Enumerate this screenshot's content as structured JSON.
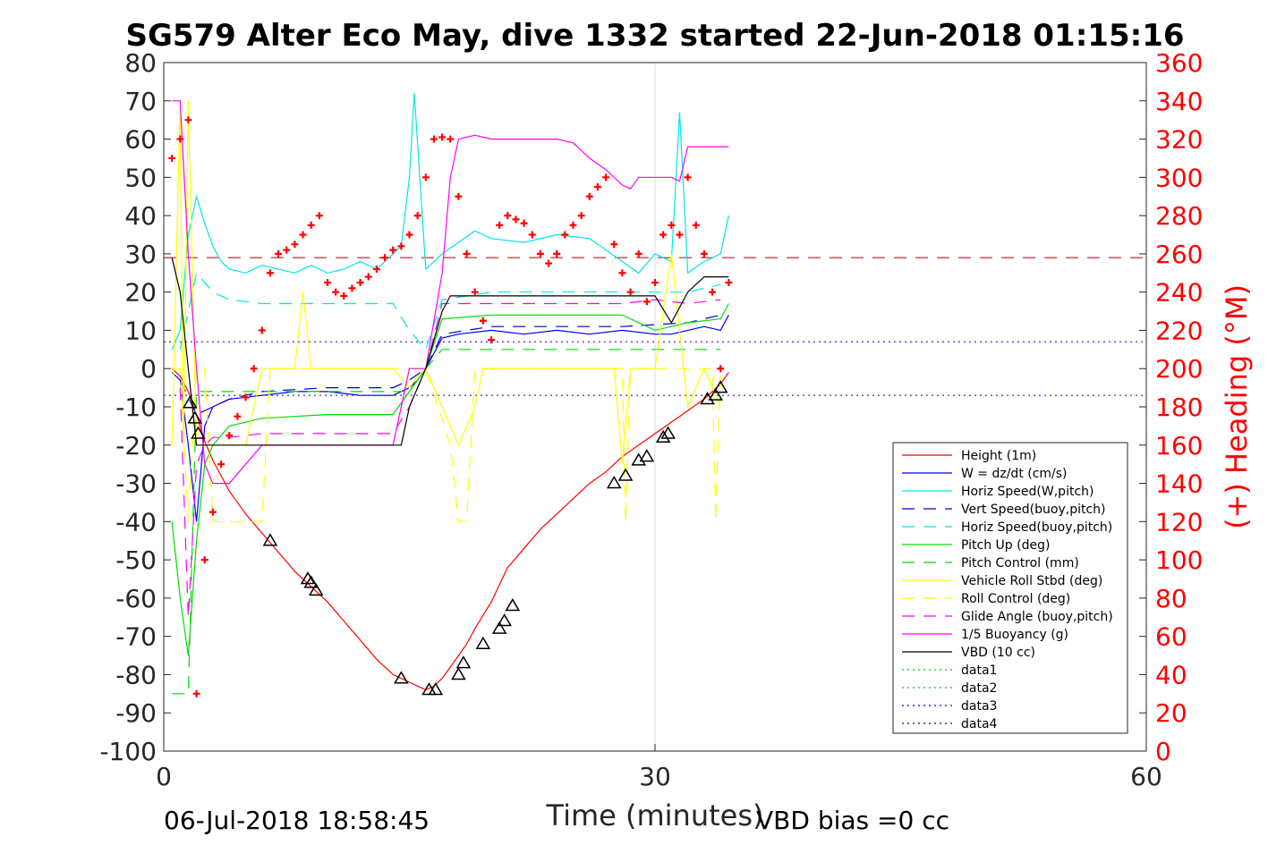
{
  "title": "SG579 Alter Eco May, dive 1332 started 22-Jun-2018 01:15:16",
  "footer": {
    "timestamp": "06-Jul-2018 18:58:45",
    "vbd_bias": "VBD bias =0 cc"
  },
  "chart_data": {
    "type": "line",
    "title": "SG579 Alter Eco May, dive 1332 started 22-Jun-2018 01:15:16",
    "xlabel": "Time (minutes)",
    "ylabel": "",
    "y2label": "(+) Heading (°M)",
    "xlim": [
      0,
      60
    ],
    "ylim": [
      -100,
      80
    ],
    "y2lim": [
      0,
      360
    ],
    "x_ticks": [
      "0",
      "30",
      "60"
    ],
    "y_ticks": [
      "80",
      "70",
      "60",
      "50",
      "40",
      "30",
      "20",
      "10",
      "0",
      "-10",
      "-20",
      "-30",
      "-40",
      "-50",
      "-60",
      "-70",
      "-80",
      "-90",
      "-100"
    ],
    "y2_ticks": [
      "360",
      "340",
      "320",
      "300",
      "280",
      "260",
      "240",
      "220",
      "200",
      "180",
      "160",
      "140",
      "120",
      "100",
      "80",
      "60",
      "40",
      "20",
      "0"
    ],
    "grid": "x-at-30",
    "legend_position": "lower-right",
    "colors": {
      "axes": "#262626",
      "heading_axis": "#ff0000"
    },
    "series": [
      {
        "name": "Height (1m)",
        "color": "#ff0000",
        "dash": "solid",
        "x": [
          0.5,
          1.0,
          1.5,
          2.0,
          2.5,
          3.0,
          4.0,
          5.0,
          6.0,
          7.0,
          8.0,
          9.0,
          10.0,
          11.0,
          12.0,
          13.0,
          14.0,
          15.0,
          16.0,
          16.5,
          17.0,
          17.5,
          18.0,
          18.5,
          19.0,
          20.0,
          21.0,
          22.0,
          23.0,
          24.0,
          25.0,
          26.0,
          27.0,
          28.0,
          29.0,
          30.0,
          31.0,
          32.0,
          33.0,
          34.0,
          34.5
        ],
        "y": [
          0,
          -2,
          -6,
          -12,
          -19,
          -24,
          -32,
          -38,
          -43,
          -48,
          -53,
          -57,
          -61,
          -66,
          -71,
          -76,
          -80,
          -82,
          -84,
          -83,
          -81,
          -78,
          -75,
          -72,
          -68,
          -61,
          -52,
          -47,
          -42,
          -38,
          -34,
          -30,
          -27,
          -23,
          -20,
          -17,
          -14,
          -11,
          -8,
          -4,
          -1
        ]
      },
      {
        "name": "W = dz/dt (cm/s)",
        "color": "#0000ff",
        "dash": "solid",
        "x": [
          0.5,
          1.0,
          1.5,
          2.0,
          2.5,
          3.0,
          4.0,
          6.0,
          8.0,
          10.0,
          12.0,
          14.0,
          15.0,
          15.5,
          16.0,
          17.0,
          18.0,
          20.0,
          22.0,
          24.0,
          26.0,
          28.0,
          30.0,
          31.0,
          32.0,
          33.0,
          34.0,
          34.5
        ],
        "y": [
          -1,
          -3,
          -20,
          -40,
          -15,
          -10,
          -8,
          -7,
          -6,
          -6,
          -7,
          -7,
          -5,
          -3,
          0,
          8,
          9,
          10,
          9,
          10,
          9,
          10,
          9,
          9,
          10,
          11,
          10,
          14
        ]
      },
      {
        "name": "Horiz Speed(W,pitch)",
        "color": "#00e6e6",
        "dash": "solid",
        "x": [
          0.5,
          1.0,
          1.5,
          2.0,
          2.5,
          3.0,
          3.5,
          4.0,
          5.0,
          6.0,
          7.0,
          8.0,
          9.0,
          10.0,
          11.0,
          12.0,
          13.0,
          14.0,
          14.5,
          15.0,
          15.3,
          16.0,
          17.0,
          18.0,
          19.0,
          20.0,
          22.0,
          24.0,
          26.0,
          28.0,
          29.0,
          30.0,
          31.0,
          31.5,
          32.0,
          33.0,
          34.0,
          34.5
        ],
        "y": [
          5,
          10,
          35,
          45,
          38,
          32,
          28,
          26,
          25,
          27,
          26,
          25,
          27,
          25,
          26,
          28,
          26,
          30,
          32,
          50,
          72,
          26,
          30,
          33,
          36,
          34,
          33,
          35,
          34,
          28,
          25,
          30,
          28,
          67,
          25,
          28,
          30,
          40
        ]
      },
      {
        "name": "Vert Speed(buoy,pitch)",
        "color": "#0000cc",
        "dash": "long",
        "x": [
          1.0,
          2.0,
          3.0,
          4.0,
          6.0,
          10.0,
          14.0,
          15.0,
          16.0,
          17.0,
          20.0,
          24.0,
          28.0,
          32.0,
          34.0
        ],
        "y": [
          -3,
          -12,
          -10,
          -8,
          -6,
          -5,
          -5,
          -3,
          0,
          9,
          11,
          11,
          11,
          12,
          14
        ]
      },
      {
        "name": "Horiz Speed(buoy,pitch)",
        "color": "#00e6e6",
        "dash": "long",
        "x": [
          1.0,
          1.5,
          2.0,
          3.0,
          4.0,
          6.0,
          10.0,
          14.0,
          15.0,
          16.0,
          17.0,
          20.0,
          24.0,
          28.0,
          32.0,
          34.0
        ],
        "y": [
          5,
          15,
          25,
          20,
          18,
          17,
          17,
          17,
          10,
          5,
          18,
          20,
          20,
          20,
          20,
          22
        ]
      },
      {
        "name": "Pitch Up (deg)",
        "color": "#00dd00",
        "dash": "solid",
        "x": [
          0.5,
          1.0,
          1.5,
          2.0,
          2.5,
          3.0,
          4.0,
          6.0,
          10.0,
          14.0,
          15.0,
          16.0,
          17.0,
          20.0,
          24.0,
          28.0,
          30.0,
          32.0,
          34.0,
          34.5
        ],
        "y": [
          -40,
          -60,
          -75,
          -45,
          -25,
          -20,
          -15,
          -13,
          -12,
          -12,
          -6,
          0,
          13,
          14,
          14,
          14,
          10,
          12,
          13,
          17
        ]
      },
      {
        "name": "Pitch Control (mm)",
        "color": "#00dd00",
        "dash": "long",
        "x": [
          0.5,
          1.5,
          2.0,
          3.0,
          6.0,
          10.0,
          15.0,
          16.0,
          17.0,
          20.0,
          25.0,
          30.0,
          34.0
        ],
        "y": [
          -85,
          -85,
          -6,
          -6,
          -6,
          -6,
          -6,
          0,
          5,
          5,
          5,
          5,
          5
        ]
      },
      {
        "name": "Vehicle Roll Stbd (deg)",
        "color": "#ffff00",
        "dash": "solid",
        "x": [
          0.5,
          1.0,
          1.2,
          1.5,
          2.0,
          2.5,
          3.0,
          4.0,
          5.0,
          6.0,
          8.0,
          8.5,
          9.0,
          9.5,
          10.0,
          12.0,
          14.0,
          15.0,
          15.5,
          16.0,
          17.0,
          18.0,
          19.0,
          19.5,
          20.0,
          22.0,
          24.0,
          27.5,
          28.0,
          28.5,
          29.0,
          30.0,
          31.0,
          32.0,
          33.0,
          34.0
        ],
        "y": [
          -20,
          70,
          -20,
          70,
          -20,
          -20,
          -20,
          -20,
          -20,
          0,
          0,
          20,
          0,
          0,
          0,
          0,
          0,
          -5,
          -2,
          0,
          -10,
          -20,
          -10,
          0,
          0,
          0,
          0,
          0,
          -25,
          0,
          0,
          0,
          30,
          -10,
          0,
          -10
        ]
      },
      {
        "name": "Roll Control (deg)",
        "color": "#ffff00",
        "dash": "long",
        "x": [
          0.5,
          1.0,
          1.5,
          2.0,
          2.5,
          3.0,
          4.0,
          6.0,
          6.5,
          7.0,
          10.0,
          14.0,
          15.0,
          16.0,
          17.5,
          18.0,
          18.5,
          19.0,
          25.0,
          28.0,
          28.2,
          28.5,
          33.5,
          33.7,
          34.0
        ],
        "y": [
          0,
          0,
          -40,
          0,
          0,
          -40,
          -40,
          -40,
          0,
          0,
          0,
          0,
          0,
          0,
          -20,
          -40,
          -40,
          0,
          0,
          0,
          -40,
          0,
          0,
          -40,
          0
        ]
      },
      {
        "name": "Glide Angle (buoy,pitch)",
        "color": "#ff00ff",
        "dash": "long",
        "x": [
          1.0,
          1.5,
          2.0,
          2.5,
          3.0,
          4.0,
          6.0,
          10.0,
          14.0,
          15.0,
          16.0,
          17.0,
          20.0,
          24.0,
          28.0,
          30.0,
          32.0,
          34.0
        ],
        "y": [
          -5,
          -65,
          -25,
          -20,
          -18,
          -18,
          -17,
          -17,
          -17,
          -10,
          0,
          17,
          17,
          17,
          17,
          18,
          17,
          18
        ]
      },
      {
        "name": "1/5 Buoyancy (g)",
        "color": "#ff00ff",
        "dash": "solid",
        "x": [
          0.5,
          1.0,
          1.5,
          2.0,
          2.5,
          3.0,
          4.0,
          5.0,
          6.0,
          10.0,
          14.0,
          15.0,
          16.0,
          17.0,
          17.5,
          18.0,
          19.0,
          20.0,
          22.0,
          24.0,
          25.0,
          26.0,
          27.0,
          28.0,
          28.5,
          29.0,
          30.0,
          31.0,
          31.5,
          32.0,
          33.0,
          34.0,
          34.5
        ],
        "y": [
          70,
          70,
          30,
          0,
          -25,
          -30,
          -30,
          -25,
          -20,
          -20,
          -20,
          0,
          0,
          25,
          50,
          60,
          61,
          60,
          60,
          60,
          59,
          55,
          52,
          48,
          47,
          50,
          50,
          50,
          49,
          58,
          58,
          58,
          58
        ]
      },
      {
        "name": "VBD (10 cc)",
        "color": "#000000",
        "dash": "solid",
        "x": [
          0.5,
          1.0,
          1.5,
          2.0,
          2.5,
          3.0,
          4.0,
          6.0,
          10.0,
          14.0,
          14.5,
          15.0,
          16.0,
          17.0,
          17.5,
          18.0,
          20.0,
          25.0,
          28.0,
          30.0,
          31.0,
          32.0,
          32.5,
          33.0,
          34.0,
          34.5
        ],
        "y": [
          29,
          20,
          0,
          -20,
          -20,
          -20,
          -20,
          -20,
          -20,
          -20,
          -20,
          -10,
          0,
          15,
          19,
          19,
          19,
          19,
          19,
          19,
          12,
          20,
          22,
          24,
          24,
          24
        ]
      },
      {
        "name": "data1",
        "color": "#00cc00",
        "dash": "dot",
        "x": [],
        "y": []
      },
      {
        "name": "data2",
        "color": "#00cc00",
        "dash": "dot",
        "x": [],
        "y": []
      },
      {
        "name": "data3",
        "color": "#0000cc",
        "dash": "dot",
        "x": [],
        "y": []
      },
      {
        "name": "data4",
        "color": "#0000cc",
        "dash": "dot",
        "x": [],
        "y": []
      }
    ],
    "reference_lines": [
      {
        "color": "#aa0000",
        "dash": "long",
        "y": 29
      },
      {
        "color": "#0000cc",
        "dash": "dot",
        "y": 7
      },
      {
        "color": "#0000cc",
        "dash": "dot",
        "y": -7
      }
    ],
    "heading_points": {
      "color": "#ff0000",
      "marker": "+",
      "x": [
        0.5,
        1.0,
        1.5,
        2.0,
        2.5,
        3.0,
        3.5,
        4.0,
        4.5,
        5.0,
        5.5,
        6.0,
        6.5,
        7.0,
        7.5,
        8.0,
        8.5,
        9.0,
        9.5,
        10.0,
        10.5,
        11.0,
        11.5,
        12.0,
        12.5,
        13.0,
        13.5,
        14.0,
        14.5,
        15.0,
        15.5,
        16.0,
        16.5,
        17.0,
        17.5,
        18.0,
        18.5,
        19.0,
        19.5,
        20.0,
        20.5,
        21.0,
        21.5,
        22.0,
        22.5,
        23.0,
        23.5,
        24.0,
        24.5,
        25.0,
        25.5,
        26.0,
        26.5,
        27.0,
        27.5,
        28.0,
        28.5,
        29.0,
        29.5,
        30.0,
        30.5,
        31.0,
        31.5,
        32.0,
        32.5,
        33.0,
        33.5,
        34.0,
        34.5
      ],
      "y": [
        310,
        320,
        330,
        30,
        100,
        125,
        150,
        165,
        175,
        185,
        200,
        220,
        250,
        260,
        262,
        265,
        270,
        275,
        280,
        245,
        240,
        238,
        242,
        245,
        248,
        252,
        258,
        262,
        264,
        270,
        280,
        300,
        320,
        321,
        320,
        290,
        260,
        240,
        225,
        215,
        275,
        280,
        278,
        276,
        270,
        260,
        255,
        260,
        270,
        275,
        280,
        290,
        295,
        300,
        265,
        250,
        240,
        260,
        235,
        245,
        270,
        275,
        270,
        300,
        275,
        260,
        240,
        200,
        245
      ]
    },
    "triangle_markers": {
      "x": [
        1.6,
        1.9,
        2.1,
        6.5,
        8.8,
        9.0,
        9.3,
        14.5,
        16.2,
        16.6,
        18.0,
        18.3,
        19.5,
        20.5,
        20.8,
        21.3,
        27.5,
        28.2,
        29.0,
        29.5,
        30.5,
        30.8,
        33.2,
        33.7,
        34.0
      ],
      "y": [
        -9,
        -13,
        -17,
        -45,
        -55,
        -56,
        -58,
        -81,
        -84,
        -84,
        -80,
        -77,
        -72,
        -68,
        -66,
        -62,
        -30,
        -28,
        -24,
        -23,
        -18,
        -17,
        -8,
        -7,
        -5
      ]
    },
    "legend": [
      "Height (1m)",
      "W = dz/dt (cm/s)",
      "Horiz Speed(W,pitch)",
      "Vert Speed(buoy,pitch)",
      "Horiz Speed(buoy,pitch)",
      "Pitch Up (deg)",
      "Pitch Control (mm)",
      "Vehicle Roll Stbd (deg)",
      "Roll Control (deg)",
      "Glide Angle (buoy,pitch)",
      "1/5 Buoyancy (g)",
      "VBD (10 cc)",
      "data1",
      "data2",
      "data3",
      "data4"
    ]
  }
}
